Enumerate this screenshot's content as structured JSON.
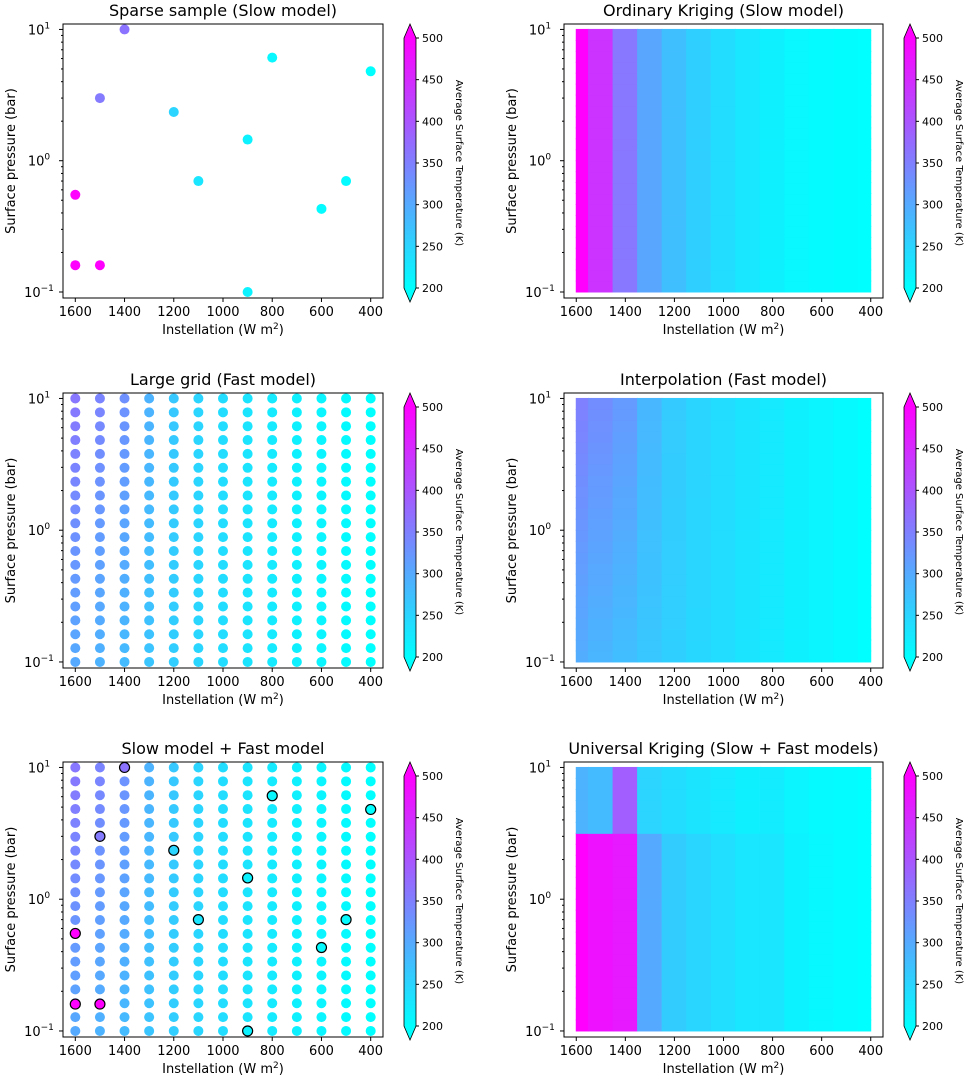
{
  "colors": {
    "cmap_low": "#00ffff",
    "cmap_high": "#ff00ff",
    "outline": "#000000"
  },
  "shared": {
    "xlabel": "Instellation (W m",
    "xlabel_sup": "2",
    "xlabel_end": ")",
    "ylabel": "Surface pressure (bar)",
    "x_ticks": [
      1600,
      1400,
      1200,
      1000,
      800,
      600,
      400
    ],
    "x_ticklabels": [
      "1600",
      "1400",
      "1200",
      "1000",
      "800",
      "600",
      "400"
    ],
    "xlim": [
      1650,
      350
    ],
    "ylim": [
      0.09,
      11
    ],
    "y_ticks": [
      {
        "base": "10",
        "exp": "−1",
        "value": 0.1
      },
      {
        "base": "10",
        "exp": "0",
        "value": 1
      },
      {
        "base": "10",
        "exp": "1",
        "value": 10
      }
    ],
    "cbar_label": "Average Surface Temperature (K)",
    "cbar_range": [
      200,
      500
    ],
    "cbar_ticks": [
      "200",
      "250",
      "300",
      "350",
      "400",
      "450",
      "500"
    ]
  },
  "chart_data": [
    {
      "type": "scatter",
      "title": "Sparse sample (Slow model)",
      "xlabel": "Instellation (W m^2)",
      "ylabel": "Surface pressure (bar)",
      "y_scale": "log",
      "points": [
        {
          "x": 1600,
          "y": 0.55,
          "t": 500
        },
        {
          "x": 1600,
          "y": 0.16,
          "t": 500
        },
        {
          "x": 1500,
          "y": 0.16,
          "t": 500
        },
        {
          "x": 1500,
          "y": 3.0,
          "t": 355
        },
        {
          "x": 1400,
          "y": 10.0,
          "t": 365
        },
        {
          "x": 1200,
          "y": 2.35,
          "t": 250
        },
        {
          "x": 1100,
          "y": 0.7,
          "t": 230
        },
        {
          "x": 900,
          "y": 1.45,
          "t": 215
        },
        {
          "x": 900,
          "y": 0.1,
          "t": 215
        },
        {
          "x": 800,
          "y": 6.1,
          "t": 210
        },
        {
          "x": 600,
          "y": 0.43,
          "t": 205
        },
        {
          "x": 500,
          "y": 0.7,
          "t": 205
        },
        {
          "x": 400,
          "y": 4.8,
          "t": 200
        }
      ]
    },
    {
      "type": "heatmap",
      "title": "Ordinary Kriging (Slow model)",
      "xlabel": "Instellation (W m^2)",
      "ylabel": "Surface pressure (bar)",
      "y_scale": "log",
      "x_bins": [
        1600,
        1500,
        1400,
        1300,
        1200,
        1100,
        1000,
        900,
        800,
        700,
        600,
        500,
        400
      ],
      "columns": [
        {
          "x": 1600,
          "t": 500
        },
        {
          "x": 1500,
          "t": 440
        },
        {
          "x": 1400,
          "t": 360
        },
        {
          "x": 1300,
          "t": 305
        },
        {
          "x": 1200,
          "t": 275
        },
        {
          "x": 1100,
          "t": 255
        },
        {
          "x": 1000,
          "t": 240
        },
        {
          "x": 900,
          "t": 228
        },
        {
          "x": 800,
          "t": 218
        },
        {
          "x": 700,
          "t": 210
        },
        {
          "x": 600,
          "t": 205
        },
        {
          "x": 500,
          "t": 202
        },
        {
          "x": 400,
          "t": 200
        }
      ],
      "pressure_modifier": 0
    },
    {
      "type": "scatter",
      "title": "Large grid (Fast model)",
      "xlabel": "Instellation (W m^2)",
      "ylabel": "Surface pressure (bar)",
      "y_scale": "log",
      "grid_x": [
        1600,
        1500,
        1400,
        1300,
        1200,
        1100,
        1000,
        900,
        800,
        700,
        600,
        500,
        400
      ],
      "grid_y_count": 20,
      "grid_y_range": [
        0.1,
        10
      ],
      "column_temps_low_p": [
        300,
        290,
        280,
        268,
        258,
        248,
        240,
        232,
        225,
        218,
        212,
        206,
        200
      ],
      "column_temps_high_p": [
        360,
        345,
        330,
        290,
        265,
        250,
        240,
        232,
        225,
        218,
        212,
        206,
        200
      ]
    },
    {
      "type": "heatmap",
      "title": "Interpolation (Fast model)",
      "xlabel": "Instellation (W m^2)",
      "ylabel": "Surface pressure (bar)",
      "y_scale": "log",
      "columns_low_p": [
        295,
        285,
        275,
        265,
        255,
        247,
        240,
        232,
        225,
        218,
        212,
        206,
        200
      ],
      "columns_high_p": [
        350,
        335,
        320,
        285,
        262,
        250,
        240,
        232,
        225,
        218,
        212,
        206,
        200
      ]
    },
    {
      "type": "scatter",
      "title": "Slow model + Fast model",
      "xlabel": "Instellation (W m^2)",
      "ylabel": "Surface pressure (bar)",
      "y_scale": "log",
      "note": "Fast-model grid with outlined slow-model sample points"
    },
    {
      "type": "heatmap",
      "title": "Universal Kriging (Slow + Fast models)",
      "xlabel": "Instellation (W m^2)",
      "ylabel": "Surface pressure (bar)",
      "y_scale": "log",
      "columns_low_p": [
        500,
        480,
        470,
        300,
        260,
        248,
        238,
        228,
        230,
        215,
        208,
        204,
        200
      ],
      "columns_high_p": [
        290,
        280,
        390,
        250,
        240,
        232,
        225,
        218,
        222,
        212,
        206,
        203,
        200
      ]
    }
  ]
}
